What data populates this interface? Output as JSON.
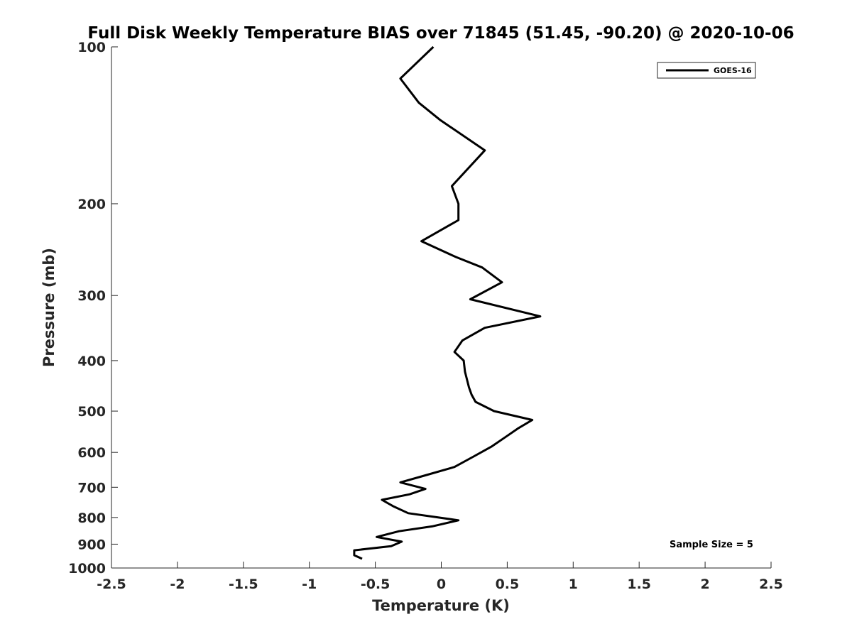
{
  "chart_data": {
    "type": "line",
    "title": "Full Disk Weekly Temperature BIAS over 71845 (51.45, -90.20) @ 2020-10-06",
    "xlabel": "Temperature (K)",
    "ylabel": "Pressure (mb)",
    "xlim": [
      -2.5,
      2.5
    ],
    "ylim": [
      100,
      1000
    ],
    "y_scale": "log",
    "y_reversed": true,
    "x_ticks": [
      "-2.5",
      "-2",
      "-1.5",
      "-1",
      "-0.5",
      "0",
      "0.5",
      "1",
      "1.5",
      "2",
      "2.5"
    ],
    "y_ticks": [
      "100",
      "200",
      "300",
      "400",
      "500",
      "600",
      "700",
      "800",
      "900",
      "1000"
    ],
    "grid": false,
    "legend": {
      "position": "top-right",
      "entries": [
        "GOES-16"
      ]
    },
    "annotation": "Sample Size = 5",
    "series": [
      {
        "name": "GOES-16",
        "color": "#000000",
        "points": [
          [
            -0.06,
            100
          ],
          [
            -0.31,
            115
          ],
          [
            -0.17,
            128
          ],
          [
            -0.01,
            138
          ],
          [
            0.33,
            158
          ],
          [
            0.08,
            185
          ],
          [
            0.13,
            200
          ],
          [
            0.13,
            215
          ],
          [
            -0.15,
            236
          ],
          [
            0.11,
            253
          ],
          [
            0.31,
            265
          ],
          [
            0.46,
            283
          ],
          [
            0.22,
            305
          ],
          [
            0.75,
            329
          ],
          [
            0.33,
            346
          ],
          [
            0.16,
            366
          ],
          [
            0.1,
            385
          ],
          [
            0.17,
            400
          ],
          [
            0.18,
            420
          ],
          [
            0.21,
            450
          ],
          [
            0.23,
            465
          ],
          [
            0.26,
            480
          ],
          [
            0.4,
            500
          ],
          [
            0.69,
            520
          ],
          [
            0.58,
            540
          ],
          [
            0.49,
            560
          ],
          [
            0.38,
            585
          ],
          [
            0.24,
            612
          ],
          [
            0.1,
            640
          ],
          [
            -0.13,
            665
          ],
          [
            -0.31,
            685
          ],
          [
            -0.12,
            705
          ],
          [
            -0.24,
            722
          ],
          [
            -0.45,
            740
          ],
          [
            -0.36,
            762
          ],
          [
            -0.25,
            785
          ],
          [
            0.13,
            810
          ],
          [
            -0.07,
            832
          ],
          [
            -0.32,
            850
          ],
          [
            -0.49,
            872
          ],
          [
            -0.3,
            890
          ],
          [
            -0.38,
            908
          ],
          [
            -0.66,
            925
          ],
          [
            -0.66,
            945
          ],
          [
            -0.6,
            960
          ]
        ]
      }
    ]
  }
}
